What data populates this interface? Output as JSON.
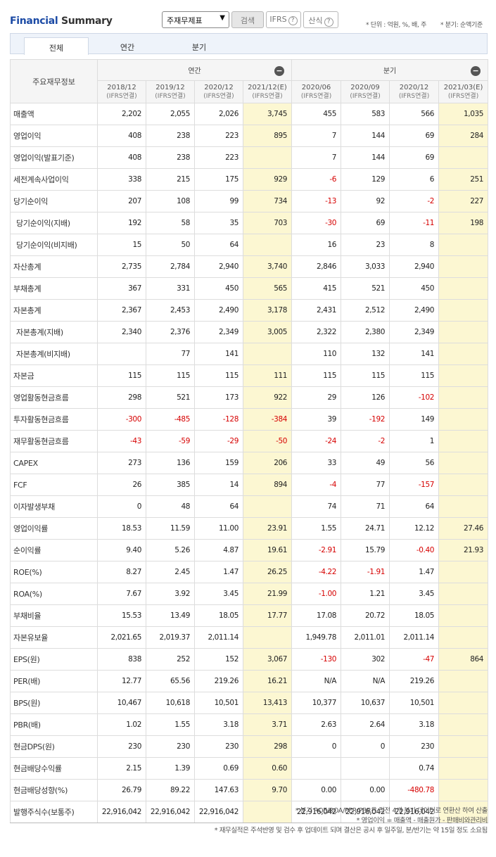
{
  "header": {
    "title_a": "Financial",
    "title_b": "Summary",
    "select_value": "주재무제표",
    "search_label": "검색",
    "ifrs_label": "IFRS",
    "formula_label": "산식",
    "unit_note": "* 단위 : 억원, %, 배, 주",
    "period_note": "* 분기: 순액기준"
  },
  "tabs": [
    "전체",
    "연간",
    "분기"
  ],
  "table": {
    "main_header": "주요재무정보",
    "annual_header": "연간",
    "quarter_header": "분기",
    "columns": [
      {
        "period": "2018/12",
        "sub": "(IFRS연결)",
        "est": false
      },
      {
        "period": "2019/12",
        "sub": "(IFRS연결)",
        "est": false
      },
      {
        "period": "2020/12",
        "sub": "(IFRS연결)",
        "est": false
      },
      {
        "period": "2021/12(E)",
        "sub": "(IFRS연결)",
        "est": true
      },
      {
        "period": "2020/06",
        "sub": "(IFRS연결)",
        "est": false
      },
      {
        "period": "2020/09",
        "sub": "(IFRS연결)",
        "est": false
      },
      {
        "period": "2020/12",
        "sub": "(IFRS연결)",
        "est": false
      },
      {
        "period": "2021/03(E)",
        "sub": "(IFRS연결)",
        "est": true
      }
    ],
    "rows": [
      {
        "label": "매출액",
        "indent": false,
        "values": [
          "2,202",
          "2,055",
          "2,026",
          "3,745",
          "455",
          "583",
          "566",
          "1,035"
        ]
      },
      {
        "label": "영업이익",
        "indent": false,
        "values": [
          "408",
          "238",
          "223",
          "895",
          "7",
          "144",
          "69",
          "284"
        ]
      },
      {
        "label": "영업이익(발표기준)",
        "indent": false,
        "values": [
          "408",
          "238",
          "223",
          "",
          "7",
          "144",
          "69",
          ""
        ]
      },
      {
        "label": "세전계속사업이익",
        "indent": false,
        "values": [
          "338",
          "215",
          "175",
          "929",
          "-6",
          "129",
          "6",
          "251"
        ]
      },
      {
        "label": "당기순이익",
        "indent": false,
        "values": [
          "207",
          "108",
          "99",
          "734",
          "-13",
          "92",
          "-2",
          "227"
        ]
      },
      {
        "label": "당기순이익(지배)",
        "indent": true,
        "values": [
          "192",
          "58",
          "35",
          "703",
          "-30",
          "69",
          "-11",
          "198"
        ]
      },
      {
        "label": "당기순이익(비지배)",
        "indent": true,
        "values": [
          "15",
          "50",
          "64",
          "",
          "16",
          "23",
          "8",
          ""
        ]
      },
      {
        "label": "자산총계",
        "indent": false,
        "values": [
          "2,735",
          "2,784",
          "2,940",
          "3,740",
          "2,846",
          "3,033",
          "2,940",
          ""
        ]
      },
      {
        "label": "부채총계",
        "indent": false,
        "values": [
          "367",
          "331",
          "450",
          "565",
          "415",
          "521",
          "450",
          ""
        ]
      },
      {
        "label": "자본총계",
        "indent": false,
        "values": [
          "2,367",
          "2,453",
          "2,490",
          "3,178",
          "2,431",
          "2,512",
          "2,490",
          ""
        ]
      },
      {
        "label": "자본총계(지배)",
        "indent": true,
        "values": [
          "2,340",
          "2,376",
          "2,349",
          "3,005",
          "2,322",
          "2,380",
          "2,349",
          ""
        ]
      },
      {
        "label": "자본총계(비지배)",
        "indent": true,
        "values": [
          "",
          "77",
          "141",
          "",
          "110",
          "132",
          "141",
          ""
        ]
      },
      {
        "label": "자본금",
        "indent": false,
        "values": [
          "115",
          "115",
          "115",
          "111",
          "115",
          "115",
          "115",
          ""
        ]
      },
      {
        "label": "영업활동현금흐름",
        "indent": false,
        "values": [
          "298",
          "521",
          "173",
          "922",
          "29",
          "126",
          "-102",
          ""
        ]
      },
      {
        "label": "투자활동현금흐름",
        "indent": false,
        "values": [
          "-300",
          "-485",
          "-128",
          "-384",
          "39",
          "-192",
          "149",
          ""
        ]
      },
      {
        "label": "재무활동현금흐름",
        "indent": false,
        "values": [
          "-43",
          "-59",
          "-29",
          "-50",
          "-24",
          "-2",
          "1",
          ""
        ]
      },
      {
        "label": "CAPEX",
        "indent": false,
        "values": [
          "273",
          "136",
          "159",
          "206",
          "33",
          "49",
          "56",
          ""
        ]
      },
      {
        "label": "FCF",
        "indent": false,
        "values": [
          "26",
          "385",
          "14",
          "894",
          "-4",
          "77",
          "-157",
          ""
        ]
      },
      {
        "label": "이자발생부채",
        "indent": false,
        "values": [
          "0",
          "48",
          "64",
          "",
          "74",
          "71",
          "64",
          ""
        ]
      },
      {
        "label": "영업이익률",
        "indent": false,
        "values": [
          "18.53",
          "11.59",
          "11.00",
          "23.91",
          "1.55",
          "24.71",
          "12.12",
          "27.46"
        ]
      },
      {
        "label": "순이익률",
        "indent": false,
        "values": [
          "9.40",
          "5.26",
          "4.87",
          "19.61",
          "-2.91",
          "15.79",
          "-0.40",
          "21.93"
        ]
      },
      {
        "label": "ROE(%)",
        "indent": false,
        "values": [
          "8.27",
          "2.45",
          "1.47",
          "26.25",
          "-4.22",
          "-1.91",
          "1.47",
          ""
        ]
      },
      {
        "label": "ROA(%)",
        "indent": false,
        "values": [
          "7.67",
          "3.92",
          "3.45",
          "21.99",
          "-1.00",
          "1.21",
          "3.45",
          ""
        ]
      },
      {
        "label": "부채비율",
        "indent": false,
        "values": [
          "15.53",
          "13.49",
          "18.05",
          "17.77",
          "17.08",
          "20.72",
          "18.05",
          ""
        ]
      },
      {
        "label": "자본유보율",
        "indent": false,
        "values": [
          "2,021.65",
          "2,019.37",
          "2,011.14",
          "",
          "1,949.78",
          "2,011.01",
          "2,011.14",
          ""
        ]
      },
      {
        "label": "EPS(원)",
        "indent": false,
        "values": [
          "838",
          "252",
          "152",
          "3,067",
          "-130",
          "302",
          "-47",
          "864"
        ]
      },
      {
        "label": "PER(배)",
        "indent": false,
        "values": [
          "12.77",
          "65.56",
          "219.26",
          "16.21",
          "N/A",
          "N/A",
          "219.26",
          ""
        ]
      },
      {
        "label": "BPS(원)",
        "indent": false,
        "values": [
          "10,467",
          "10,618",
          "10,501",
          "13,413",
          "10,377",
          "10,637",
          "10,501",
          ""
        ]
      },
      {
        "label": "PBR(배)",
        "indent": false,
        "values": [
          "1.02",
          "1.55",
          "3.18",
          "3.71",
          "2.63",
          "2.64",
          "3.18",
          ""
        ]
      },
      {
        "label": "현금DPS(원)",
        "indent": false,
        "values": [
          "230",
          "230",
          "230",
          "298",
          "0",
          "0",
          "230",
          ""
        ]
      },
      {
        "label": "현금배당수익률",
        "indent": false,
        "values": [
          "2.15",
          "1.39",
          "0.69",
          "0.60",
          "",
          "",
          "0.74",
          ""
        ]
      },
      {
        "label": "현금배당성향(%)",
        "indent": false,
        "values": [
          "26.79",
          "89.22",
          "147.63",
          "9.70",
          "0.00",
          "0.00",
          "-480.78",
          ""
        ]
      },
      {
        "label": "발행주식수(보통주)",
        "indent": false,
        "values": [
          "22,916,042",
          "22,916,042",
          "22,916,042",
          "",
          "22,916,042",
          "22,916,042",
          "22,916,042",
          ""
        ]
      }
    ]
  },
  "notes": [
    "* 분기 ROE/ROA/PER/PBR은 직전 4개 분기 데이터로 연환산 하여 산출",
    "* 영업이익 = 매출액 - 매출원가 - 판매비와관리비",
    "* 재무실적은 주석반영 및 검수 후 업데이트 되며 결산은 공시 후 일주일, 분/반기는 약 15일 정도 소요됨"
  ],
  "colors": {
    "accent": "#1b4aa5",
    "estimate_bg": "#fcf7d2",
    "negative": "#d60000"
  }
}
